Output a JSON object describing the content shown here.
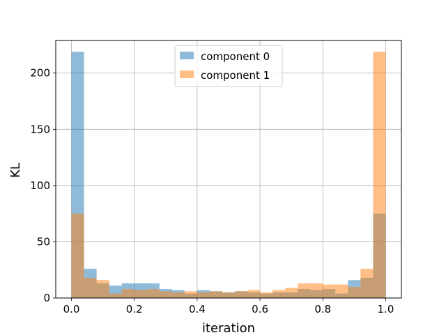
{
  "chart_data": {
    "type": "bar",
    "xlabel": "iteration",
    "ylabel": "KL",
    "xlim": [
      -0.05,
      1.05
    ],
    "ylim": [
      0,
      229
    ],
    "grid": true,
    "legend_position": "top-center",
    "bin_edges": [
      0.0,
      0.04,
      0.08,
      0.12,
      0.16,
      0.2,
      0.24,
      0.28,
      0.32,
      0.36,
      0.4,
      0.44,
      0.48,
      0.52,
      0.56,
      0.6,
      0.64,
      0.68,
      0.72,
      0.76,
      0.8,
      0.84,
      0.88,
      0.92,
      0.96,
      1.0
    ],
    "xticks": [
      "0.0",
      "0.2",
      "0.4",
      "0.6",
      "0.8",
      "1.0"
    ],
    "xtick_values": [
      0.0,
      0.2,
      0.4,
      0.6,
      0.8,
      1.0
    ],
    "yticks": [
      "0",
      "50",
      "100",
      "150",
      "200"
    ],
    "ytick_values": [
      0,
      50,
      100,
      150,
      200
    ],
    "series": [
      {
        "name": "component 0",
        "color": "#1f77b4",
        "values": [
          219,
          26,
          13,
          11,
          13,
          13,
          13,
          8,
          7,
          4,
          7,
          6,
          5,
          6,
          5,
          4,
          5,
          5,
          8,
          7,
          8,
          4,
          16,
          18,
          75
        ]
      },
      {
        "name": "component 1",
        "color": "#ff7f0e",
        "values": [
          75,
          18,
          16,
          4,
          8,
          7,
          8,
          6,
          5,
          6,
          5,
          6,
          5,
          6,
          7,
          5,
          7,
          9,
          13,
          13,
          12,
          12,
          10,
          26,
          219
        ]
      }
    ]
  }
}
